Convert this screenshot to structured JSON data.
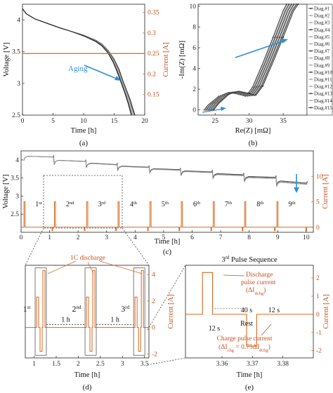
{
  "colors": {
    "voltage": "#333333",
    "current": "#d2691e",
    "aging_arrow": "#2e8fd6",
    "axis": "#222222"
  },
  "chart_data": [
    {
      "id": "a",
      "type": "line",
      "caption": "(a)",
      "xlabel": "Time [h]",
      "ylabel": "Voltage [V]",
      "y2label": "Current [A]",
      "xlim": [
        0,
        20
      ],
      "ylim": [
        2.5,
        4.25
      ],
      "y2lim": [
        0.1,
        0.37
      ],
      "xticks": [
        "0",
        "5",
        "10",
        "15",
        "20"
      ],
      "yticks": [
        "2.5",
        "3",
        "3.5",
        "4"
      ],
      "y2ticks": [
        "0.15",
        "0.2",
        "0.25",
        "0.3",
        "0.35"
      ],
      "annotation": "Aging",
      "series": [
        {
          "label_shown": false,
          "kind": "voltage",
          "x": [
            0,
            0.6,
            2,
            4,
            6,
            8,
            10,
            12,
            13,
            14,
            15,
            15.8,
            16.4,
            17,
            17.6,
            18,
            18.4
          ],
          "y": [
            4.18,
            4.1,
            4.02,
            3.95,
            3.88,
            3.82,
            3.76,
            3.68,
            3.62,
            3.52,
            3.38,
            3.22,
            3.05,
            2.9,
            2.75,
            2.62,
            2.5
          ]
        },
        {
          "label_shown": false,
          "kind": "voltage",
          "x": [
            0,
            0.6,
            2,
            4,
            6,
            8,
            10,
            12,
            13,
            14,
            14.8,
            15.5,
            16.1,
            16.7,
            17.3,
            17.8
          ],
          "y": [
            4.18,
            4.1,
            4.02,
            3.95,
            3.88,
            3.82,
            3.75,
            3.66,
            3.59,
            3.48,
            3.34,
            3.18,
            3.02,
            2.86,
            2.68,
            2.5
          ]
        },
        {
          "label_shown": false,
          "kind": "current",
          "x": [
            0,
            20
          ],
          "y": [
            0.25,
            0.25
          ]
        }
      ]
    },
    {
      "id": "b",
      "type": "line",
      "caption": "(b)",
      "xlabel": "Re(Z) [mΩ]",
      "ylabel": "-Im(Z) [mΩ]",
      "xlim": [
        22.5,
        38.5
      ],
      "ylim": [
        -0.5,
        10.2
      ],
      "xticks": [
        "25",
        "30",
        "35"
      ],
      "yticks": [
        "0",
        "2",
        "4",
        "6",
        "8",
        "10"
      ],
      "legend": {
        "placement": "right",
        "entries": [
          "Diag.#1",
          "Diag.#2",
          "Diag.#3",
          "Diag.#4",
          "Diag.#5",
          "Diag.#6",
          "Diag.#7",
          "Diag.#8",
          "Diag.#9",
          "Diag.#10",
          "Diag.#11",
          "Diag.#12",
          "Diag.#13",
          "Diag.#14",
          "Diag.#15"
        ]
      },
      "series": [
        {
          "name": "Diag.#1",
          "x": [
            23.4,
            24,
            25.5,
            27,
            28.5,
            29.5,
            30.5,
            32,
            33.5,
            35,
            35.5
          ],
          "y": [
            0,
            0.5,
            1.3,
            1.7,
            1.5,
            1.3,
            2.2,
            4.5,
            7,
            9.6,
            10.2
          ]
        },
        {
          "name": "Diag.#15",
          "x": [
            24.8,
            25.5,
            27,
            28.5,
            30,
            31,
            32,
            33.5,
            35,
            36.5,
            37.2
          ],
          "y": [
            0,
            0.6,
            1.5,
            1.8,
            1.6,
            1.4,
            2.3,
            4.6,
            7,
            9.5,
            10.2
          ]
        }
      ]
    },
    {
      "id": "c",
      "type": "line",
      "caption": "(c)",
      "xlabel": "Time [h]",
      "ylabel": "Voltage [V]",
      "y2label": "Current [A]",
      "xlim": [
        0,
        10.25
      ],
      "ylim": [
        2.0,
        4.25
      ],
      "y2lim": [
        -1,
        15
      ],
      "xticks": [
        "0",
        "1",
        "2",
        "3",
        "4",
        "5",
        "6",
        "7",
        "8",
        "9",
        "10"
      ],
      "yticks": [
        "2.5",
        "3",
        "3.5",
        "4"
      ],
      "y2ticks": [
        "0",
        "5",
        "10"
      ],
      "sequence_labels": [
        {
          "num": "1",
          "sup": "st"
        },
        {
          "num": "2",
          "sup": "nd"
        },
        {
          "num": "3",
          "sup": "rd"
        },
        {
          "num": "4",
          "sup": "th"
        },
        {
          "num": "5",
          "sup": "th"
        },
        {
          "num": "6",
          "sup": "th"
        },
        {
          "num": "7",
          "sup": "th"
        },
        {
          "num": "8",
          "sup": "th"
        },
        {
          "num": "9",
          "sup": "th"
        }
      ],
      "rest_voltage_start": [
        4.1,
        3.99,
        3.91,
        3.83,
        3.76,
        3.7,
        3.62,
        3.54,
        3.42,
        2.95
      ],
      "rest_voltage_end": [
        4.08,
        3.96,
        3.87,
        3.8,
        3.73,
        3.67,
        3.59,
        3.52,
        3.36,
        2.78
      ],
      "pulse_times": [
        0.08,
        1.15,
        2.28,
        3.38,
        4.5,
        5.6,
        6.72,
        7.82,
        8.95,
        10.05
      ],
      "discharge_current": 5
    },
    {
      "id": "d",
      "type": "line",
      "caption": "(d)",
      "xlabel": "Time [h]",
      "y2label": "Current [A]",
      "xlim": [
        0.8,
        3.6
      ],
      "y2lim": [
        -2.3,
        4.7
      ],
      "xticks": [
        "1",
        "1.5",
        "2",
        "2.5",
        "3",
        "3.5"
      ],
      "y2ticks": [
        "-2",
        "0",
        "2",
        "4"
      ],
      "annotation_top": "1C discharge",
      "sequence_labels": [
        {
          "num": "1",
          "sup": "st"
        },
        {
          "num": "2",
          "sup": "nd"
        },
        {
          "num": "3",
          "sup": "rd"
        }
      ],
      "gap_labels": [
        "1 h",
        "1 h"
      ],
      "pulse_times": [
        1.15,
        2.28,
        3.38
      ]
    },
    {
      "id": "e",
      "type": "line",
      "caption": "(e)",
      "title_num": "3",
      "title_sup": "rd",
      "title_rest": " Pulse Sequence",
      "xlabel": "Time [h]",
      "y2label": "Current [A]",
      "xlim": [
        3.348,
        3.39
      ],
      "y2lim": [
        -2.4,
        2.7
      ],
      "xticks": [
        "3.36",
        "3.37",
        "3.38"
      ],
      "y2ticks": [
        "-2",
        "-1",
        "0",
        "1",
        "2"
      ],
      "annotations": {
        "discharge_line1": "Discharge",
        "discharge_line2": "pulse current",
        "discharge_line3": "(ΔI",
        "discharge_line3_sub": "dchg",
        "discharge_line3_end": ")",
        "dur1": "12 s",
        "rest_dur": "40 s",
        "rest": "Rest",
        "dur2": "12 s",
        "charge_line1": "Charge pulse current",
        "charge_line2_a": "(ΔI",
        "charge_line2_sub1": "chg",
        "charge_line2_b": " = 0.75ΔI",
        "charge_line2_sub2": "dchg",
        "charge_line2_c": ")"
      },
      "pulse": {
        "discharge_start": 3.3536,
        "discharge_end": 3.3569,
        "discharge_value": 2.3,
        "charge_start": 3.3681,
        "charge_end": 3.3714,
        "charge_value": -1.75
      }
    }
  ]
}
